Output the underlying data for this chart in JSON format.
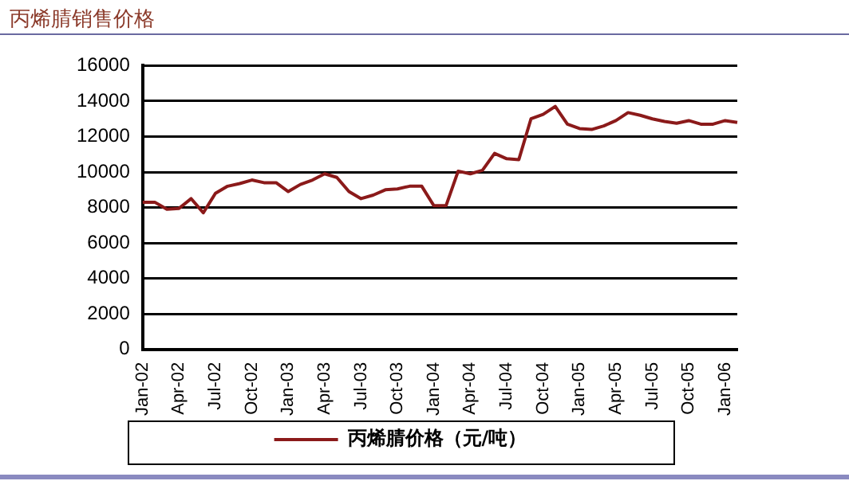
{
  "chart_data": {
    "type": "line",
    "title": "丙烯腈销售价格",
    "categories": [
      "Jan-02",
      null,
      null,
      "Apr-02",
      null,
      null,
      "Jul-02",
      null,
      null,
      "Oct-02",
      null,
      null,
      "Jan-03",
      null,
      null,
      "Apr-03",
      null,
      null,
      "Jul-03",
      null,
      null,
      "Oct-03",
      null,
      null,
      "Jan-04",
      null,
      null,
      "Apr-04",
      null,
      null,
      "Jul-04",
      null,
      null,
      "Oct-04",
      null,
      null,
      "Jan-05",
      null,
      null,
      "Apr-05",
      null,
      null,
      "Jul-05",
      null,
      null,
      "Oct-05",
      null,
      null,
      "Jan-06",
      null
    ],
    "series": [
      {
        "name": "丙烯腈价格（元/吨）",
        "color": "#8b1a1a",
        "values": [
          8300,
          8300,
          7900,
          7950,
          8500,
          7700,
          8800,
          9200,
          9350,
          9550,
          9400,
          9400,
          8900,
          9300,
          9550,
          9900,
          9700,
          8900,
          8500,
          8700,
          9000,
          9050,
          9200,
          9200,
          8100,
          8100,
          10050,
          9900,
          10100,
          11050,
          10750,
          10700,
          13000,
          13250,
          13700,
          12700,
          12450,
          12400,
          12600,
          12900,
          13350,
          13200,
          13000,
          12850,
          12750,
          12900,
          12700,
          12700,
          12900,
          12800
        ]
      }
    ],
    "ylim": [
      0,
      16000
    ],
    "yticks": [
      0,
      2000,
      4000,
      6000,
      8000,
      10000,
      12000,
      14000,
      16000
    ],
    "grid": "y",
    "legend": "bottom",
    "marker": "none",
    "line_style": "solid"
  }
}
